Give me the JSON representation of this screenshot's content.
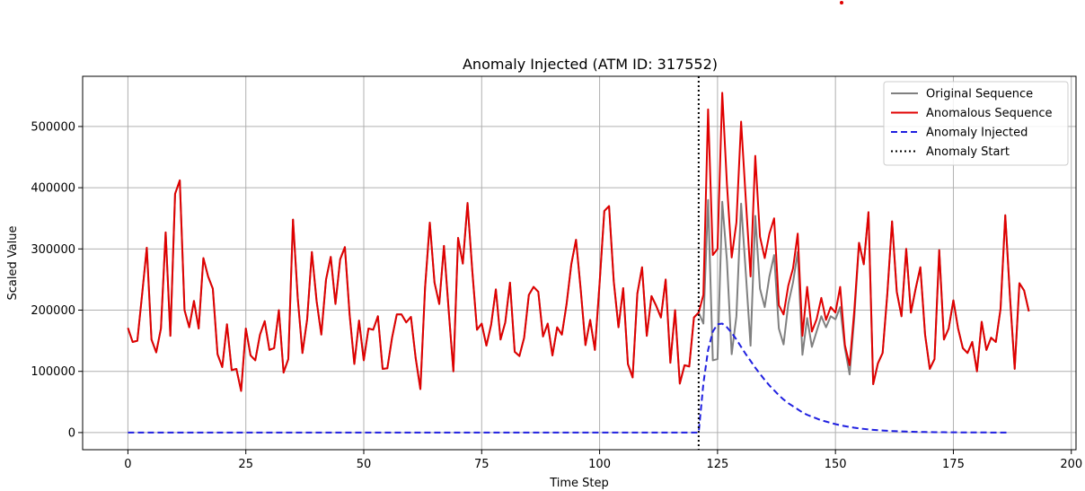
{
  "chart_data": {
    "type": "line",
    "title": "Anomaly Injected (ATM ID: 317552)",
    "xlabel": "Time Step",
    "ylabel": "Scaled Value",
    "xlim": [
      -9.6,
      201
    ],
    "ylim": [
      -28000,
      582000
    ],
    "xticks": [
      0,
      25,
      50,
      75,
      100,
      125,
      150,
      175,
      200
    ],
    "yticks": [
      0,
      100000,
      200000,
      300000,
      400000,
      500000
    ],
    "grid": true,
    "legend_position": "top-right",
    "anomaly_start": 121,
    "x_start": 0,
    "series": [
      {
        "name": "Original Sequence",
        "color": "#808080",
        "style": "solid",
        "values": [
          171000,
          148000,
          150000,
          225000,
          302000,
          152000,
          131000,
          170000,
          327000,
          158000,
          390000,
          412000,
          200000,
          172000,
          215000,
          170000,
          285000,
          255000,
          235000,
          128000,
          107000,
          177000,
          102000,
          104000,
          68000,
          170000,
          126000,
          118000,
          160000,
          182000,
          135000,
          138000,
          200000,
          98000,
          120000,
          348000,
          220000,
          130000,
          185000,
          295000,
          215000,
          160000,
          250000,
          287000,
          210000,
          283000,
          303000,
          193000,
          112000,
          183000,
          118000,
          170000,
          168000,
          190000,
          104000,
          105000,
          155000,
          193000,
          193000,
          180000,
          189000,
          122000,
          71000,
          237000,
          343000,
          245000,
          210000,
          305000,
          200000,
          100000,
          318000,
          276000,
          375000,
          265000,
          168000,
          178000,
          142000,
          176000,
          234000,
          152000,
          180000,
          245000,
          132000,
          125000,
          155000,
          225000,
          238000,
          230000,
          157000,
          178000,
          126000,
          172000,
          160000,
          210000,
          275000,
          315000,
          233000,
          143000,
          184000,
          135000,
          244000,
          362000,
          370000,
          247000,
          172000,
          236000,
          112000,
          90000,
          227000,
          270000,
          158000,
          223000,
          207000,
          188000,
          250000,
          114000,
          200000,
          80000,
          110000,
          108000,
          188000,
          196000,
          178000,
          380000,
          118000,
          120000,
          377000,
          280000,
          128000,
          190000,
          374000,
          260000,
          142000,
          354000,
          235000,
          205000,
          255000,
          290000,
          170000,
          144000,
          210000,
          245000,
          295000,
          127000,
          187000,
          140000,
          165000,
          190000,
          172000,
          190000,
          185000,
          205000,
          138000,
          95000,
          188000,
          310000,
          275000,
          360000,
          79000,
          113000,
          130000,
          227000,
          345000,
          230000,
          190000,
          300000,
          196000,
          235000,
          270000,
          160000,
          104000,
          120000,
          298000,
          152000,
          170000,
          216000,
          170000,
          138000,
          130000,
          148000,
          100000,
          181000,
          135000,
          155000,
          148000,
          202000,
          355000,
          222000,
          104000,
          244000,
          232000,
          198000
        ]
      },
      {
        "name": "Anomalous Sequence",
        "color": "#e00000",
        "style": "solid",
        "values": [
          171000,
          148000,
          150000,
          225000,
          302000,
          152000,
          131000,
          170000,
          327000,
          158000,
          390000,
          412000,
          200000,
          172000,
          215000,
          170000,
          285000,
          255000,
          235000,
          128000,
          107000,
          177000,
          102000,
          104000,
          68000,
          170000,
          126000,
          118000,
          160000,
          182000,
          135000,
          138000,
          200000,
          98000,
          120000,
          348000,
          220000,
          130000,
          185000,
          295000,
          215000,
          160000,
          250000,
          287000,
          210000,
          283000,
          303000,
          193000,
          112000,
          183000,
          118000,
          170000,
          168000,
          190000,
          104000,
          105000,
          155000,
          193000,
          193000,
          180000,
          189000,
          122000,
          71000,
          237000,
          343000,
          245000,
          210000,
          305000,
          200000,
          100000,
          318000,
          276000,
          375000,
          265000,
          168000,
          178000,
          142000,
          176000,
          234000,
          152000,
          180000,
          245000,
          132000,
          125000,
          155000,
          225000,
          238000,
          230000,
          157000,
          178000,
          126000,
          172000,
          160000,
          210000,
          275000,
          315000,
          233000,
          143000,
          184000,
          135000,
          244000,
          362000,
          370000,
          247000,
          172000,
          236000,
          112000,
          90000,
          227000,
          270000,
          158000,
          223000,
          207000,
          188000,
          250000,
          114000,
          200000,
          80000,
          110000,
          108000,
          188000,
          196000,
          225000,
          528000,
          290000,
          300000,
          555000,
          405000,
          286000,
          343000,
          508000,
          380000,
          255000,
          452000,
          320000,
          285000,
          325000,
          350000,
          208000,
          193000,
          240000,
          268000,
          325000,
          158000,
          238000,
          165000,
          185000,
          220000,
          184000,
          205000,
          196000,
          238000,
          143000,
          110000,
          200000,
          310000,
          275000,
          360000,
          79000,
          113000,
          130000,
          227000,
          345000,
          230000,
          190000,
          300000,
          196000,
          235000,
          270000,
          160000,
          104000,
          120000,
          298000,
          152000,
          170000,
          216000,
          170000,
          138000,
          130000,
          148000,
          100000,
          181000,
          135000,
          155000,
          148000,
          202000,
          355000,
          222000,
          104000,
          244000,
          232000,
          198000
        ]
      },
      {
        "name": "Anomaly Injected",
        "color": "#1f1fe0",
        "style": "dashed",
        "values": [
          0,
          0,
          0,
          0,
          0,
          0,
          0,
          0,
          0,
          0,
          0,
          0,
          0,
          0,
          0,
          0,
          0,
          0,
          0,
          0,
          0,
          0,
          0,
          0,
          0,
          0,
          0,
          0,
          0,
          0,
          0,
          0,
          0,
          0,
          0,
          0,
          0,
          0,
          0,
          0,
          0,
          0,
          0,
          0,
          0,
          0,
          0,
          0,
          0,
          0,
          0,
          0,
          0,
          0,
          0,
          0,
          0,
          0,
          0,
          0,
          0,
          0,
          0,
          0,
          0,
          0,
          0,
          0,
          0,
          0,
          0,
          0,
          0,
          0,
          0,
          0,
          0,
          0,
          0,
          0,
          0,
          0,
          0,
          0,
          0,
          0,
          0,
          0,
          0,
          0,
          0,
          0,
          0,
          0,
          0,
          0,
          0,
          0,
          0,
          0,
          0,
          0,
          0,
          0,
          0,
          0,
          0,
          0,
          0,
          0,
          0,
          0,
          0,
          0,
          0,
          0,
          0,
          0,
          0,
          0,
          0,
          0,
          80000,
          135000,
          165000,
          177000,
          178000,
          172000,
          163000,
          152000,
          140000,
          128000,
          117000,
          106000,
          96000,
          86000,
          77000,
          69000,
          61000,
          54000,
          48000,
          43000,
          38000,
          33000,
          29000,
          26000,
          23000,
          20000,
          18000,
          15800,
          13800,
          12000,
          10500,
          9100,
          7900,
          6900,
          6000,
          5200,
          4500,
          3900,
          3400,
          2900,
          2500,
          2200,
          1900,
          1600,
          1400,
          1200,
          1050,
          900,
          780,
          680,
          590,
          510,
          440,
          380,
          330,
          280,
          240,
          210,
          180,
          160,
          140,
          120,
          100,
          90,
          80,
          70
        ]
      },
      {
        "name": "Anomaly Start",
        "color": "#000000",
        "style": "dotted"
      }
    ]
  }
}
